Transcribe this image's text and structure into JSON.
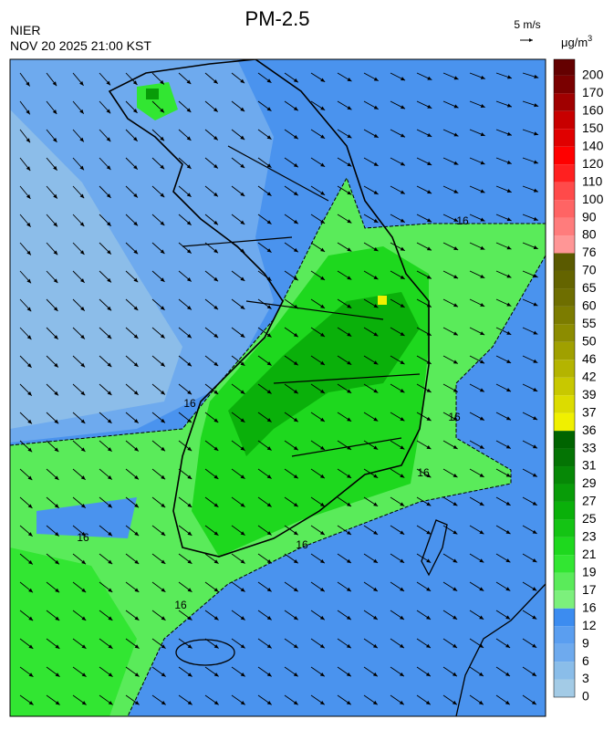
{
  "header": {
    "title": "PM-2.5",
    "agency": "NIER",
    "datetime": "NOV 20 2025 21:00 KST",
    "wind_scale": "5 m/s",
    "unit": {
      "base": "μg/m",
      "sup": "3"
    }
  },
  "legend": {
    "levels": [
      {
        "value": 0,
        "color": "#a3cbe6"
      },
      {
        "value": 3,
        "color": "#8abde9"
      },
      {
        "value": 6,
        "color": "#6eaaee"
      },
      {
        "value": 9,
        "color": "#5a9ef0"
      },
      {
        "value": 12,
        "color": "#3c8cf0"
      },
      {
        "value": 16,
        "color": "#7cf07c"
      },
      {
        "value": 17,
        "color": "#5aeb5a"
      },
      {
        "value": 19,
        "color": "#32e632"
      },
      {
        "value": 21,
        "color": "#1ed81e"
      },
      {
        "value": 23,
        "color": "#14c414"
      },
      {
        "value": 25,
        "color": "#0ab00a"
      },
      {
        "value": 27,
        "color": "#089c08"
      },
      {
        "value": 29,
        "color": "#068806"
      },
      {
        "value": 31,
        "color": "#047404"
      },
      {
        "value": 33,
        "color": "#006400"
      },
      {
        "value": 36,
        "color": "#f0f000"
      },
      {
        "value": 37,
        "color": "#dcdc00"
      },
      {
        "value": 39,
        "color": "#c8c800"
      },
      {
        "value": 42,
        "color": "#b4b400"
      },
      {
        "value": 46,
        "color": "#a0a000"
      },
      {
        "value": 50,
        "color": "#8c8c00"
      },
      {
        "value": 55,
        "color": "#7c7c00"
      },
      {
        "value": 60,
        "color": "#6e6e00"
      },
      {
        "value": 65,
        "color": "#646400"
      },
      {
        "value": 70,
        "color": "#5a5a00"
      },
      {
        "value": 76,
        "color": "#ff9696"
      },
      {
        "value": 80,
        "color": "#ff7c7c"
      },
      {
        "value": 90,
        "color": "#ff6464"
      },
      {
        "value": 100,
        "color": "#ff4a4a"
      },
      {
        "value": 110,
        "color": "#ff2020"
      },
      {
        "value": 120,
        "color": "#ff0000"
      },
      {
        "value": 140,
        "color": "#e00000"
      },
      {
        "value": 150,
        "color": "#c80000"
      },
      {
        "value": 160,
        "color": "#a00000"
      },
      {
        "value": 170,
        "color": "#7a0000"
      },
      {
        "value": 200,
        "color": "#640000"
      }
    ]
  },
  "map": {
    "contour_labels": [
      "16",
      "16",
      "16",
      "16",
      "16",
      "16",
      "16"
    ]
  }
}
